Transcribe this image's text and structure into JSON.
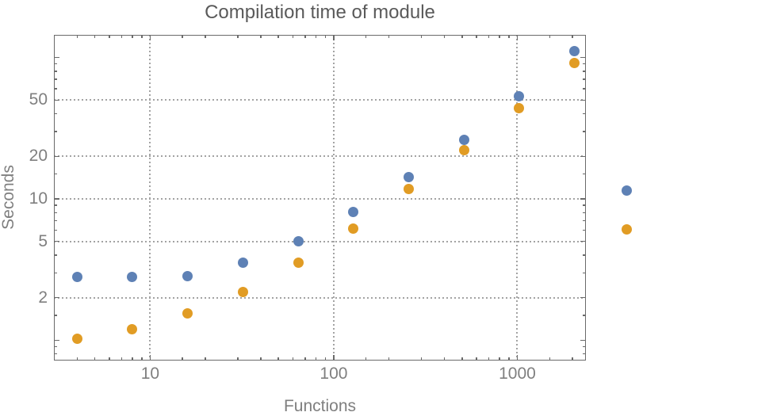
{
  "chart_data": {
    "type": "scatter",
    "title": "Compilation time of module",
    "xlabel": "Functions",
    "ylabel": "Seconds",
    "x_scale": "log",
    "y_scale": "log",
    "xlim": [
      2.99,
      2364
    ],
    "ylim": [
      0.719,
      144.6
    ],
    "grid": "dotted lines at labeled major ticks",
    "legend_position": "right-outside",
    "x": [
      4,
      8,
      16,
      32,
      64,
      128,
      256,
      512,
      1024,
      2048
    ],
    "series": [
      {
        "name": "series-1-blue",
        "color": "#5e81b5",
        "values": [
          2.8,
          2.8,
          2.85,
          3.55,
          5.0,
          8.1,
          14.2,
          26,
          53,
          111
        ]
      },
      {
        "name": "series-2-orange",
        "color": "#e19c24",
        "values": [
          1.03,
          1.2,
          1.55,
          2.2,
          3.55,
          6.2,
          11.7,
          22,
          44,
          92
        ]
      }
    ],
    "x_axis": {
      "major_ticks": [
        10,
        100,
        1000
      ],
      "tick_labels": [
        "10",
        "100",
        "1000"
      ],
      "minor_tick_multiples": [
        1.5,
        2,
        3,
        4,
        5,
        6,
        7,
        8,
        9
      ],
      "minor_tick_decades": [
        1,
        10,
        100,
        1000
      ]
    },
    "y_axis": {
      "major_ticks": [
        2,
        5,
        10,
        20,
        50
      ],
      "tick_labels": [
        "2",
        "5",
        "10",
        "20",
        "50"
      ],
      "unlabeled_major_ticks": [
        1,
        100
      ],
      "minor_tick_multiples": [
        1.5,
        3,
        4,
        6,
        7,
        8,
        9
      ],
      "minor_tick_decades": [
        0.1,
        1,
        10,
        100
      ]
    }
  },
  "legend": {
    "items": [
      {
        "name": "series-1-marker",
        "color": "#5e81b5"
      },
      {
        "name": "series-2-marker",
        "color": "#e19c24"
      }
    ]
  },
  "colors": {
    "background": "#ffffff",
    "frame": "#6a6a6a",
    "grid": "#a3a3a3",
    "tick_label": "#7f7f7f",
    "axis_label": "#7f7f7f",
    "title": "#5a5a5a",
    "series1": "#5e81b5",
    "series2": "#e19c24"
  }
}
